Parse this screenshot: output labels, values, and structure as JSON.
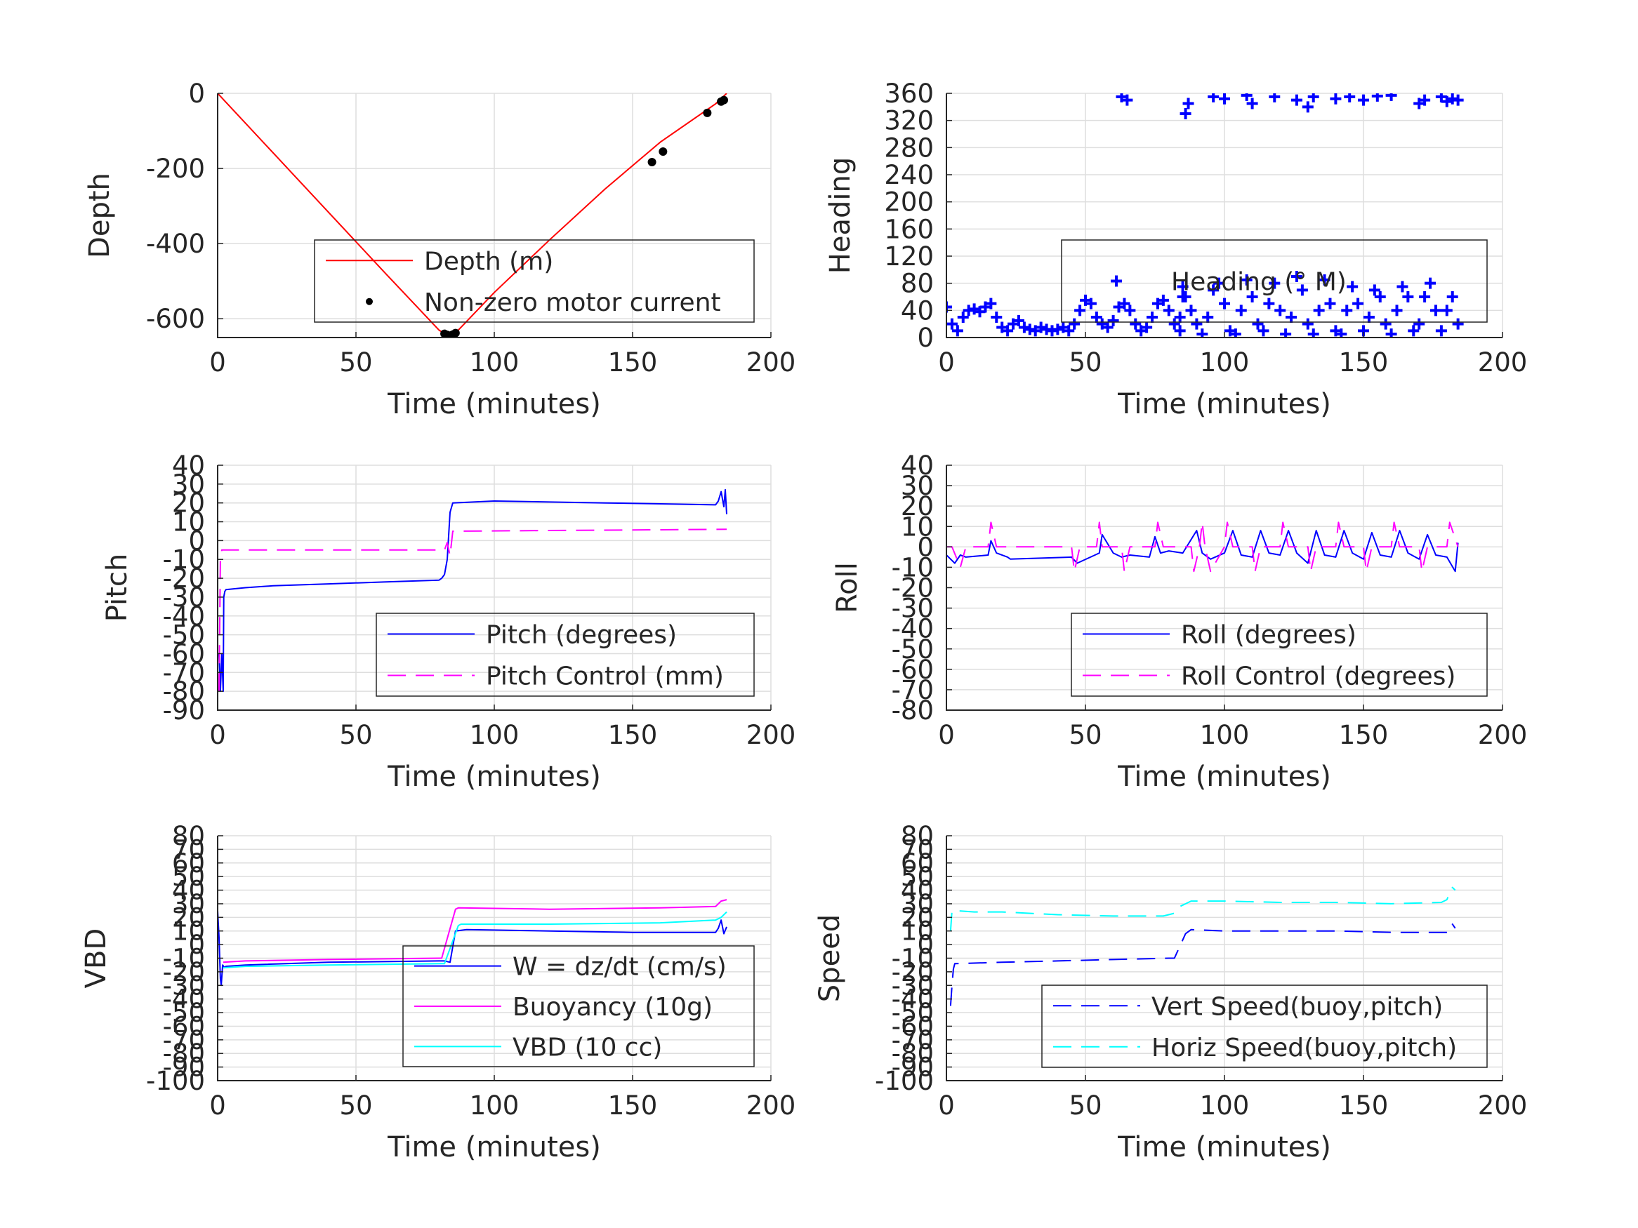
{
  "figure": {
    "background": "#ffffff"
  },
  "chart_data": [
    {
      "id": "depth",
      "type": "line",
      "xlabel": "Time (minutes)",
      "ylabel": "Depth",
      "xlim": [
        0,
        200
      ],
      "ylim": [
        -650,
        0
      ],
      "xticks": [
        "0",
        "50",
        "100",
        "150",
        "200"
      ],
      "yticks": [
        "-600",
        "-400",
        "-200",
        "0"
      ],
      "ytick_values": [
        -600,
        -400,
        -200,
        0
      ],
      "grid": true,
      "legend_position": "lower-right",
      "series": [
        {
          "name": "Depth (m)",
          "style": "line",
          "color": "#ff0000",
          "x": [
            0,
            20,
            40,
            60,
            80,
            83,
            86,
            100,
            120,
            140,
            160,
            180,
            184
          ],
          "y": [
            0,
            -158,
            -316,
            -474,
            -630,
            -645,
            -638,
            -530,
            -390,
            -255,
            -130,
            -28,
            0
          ]
        },
        {
          "name": "Non-zero motor current",
          "style": "dot",
          "color": "#000000",
          "x": [
            82,
            83,
            84,
            85,
            86,
            157,
            161,
            177,
            182,
            183
          ],
          "y": [
            -640,
            -643,
            -645,
            -642,
            -638,
            -183,
            -155,
            -52,
            -22,
            -18
          ]
        }
      ]
    },
    {
      "id": "heading",
      "type": "scatter",
      "xlabel": "Time (minutes)",
      "ylabel": "Heading",
      "xlim": [
        0,
        200
      ],
      "ylim": [
        0,
        360
      ],
      "xticks": [
        "0",
        "50",
        "100",
        "150",
        "200"
      ],
      "yticks": [
        "0",
        "40",
        "80",
        "120",
        "160",
        "200",
        "240",
        "280",
        "320",
        "360"
      ],
      "ytick_values": [
        0,
        40,
        80,
        120,
        160,
        200,
        240,
        280,
        320,
        360
      ],
      "grid": true,
      "legend_position": "center-right",
      "series": [
        {
          "name": "Heading (° M)",
          "style": "plus",
          "color": "#0000ff",
          "x": [
            0,
            2,
            4,
            6,
            8,
            10,
            12,
            14,
            16,
            18,
            20,
            22,
            24,
            26,
            28,
            30,
            32,
            34,
            36,
            38,
            40,
            42,
            44,
            46,
            48,
            50,
            52,
            54,
            56,
            58,
            60,
            62,
            64,
            66,
            68,
            70,
            72,
            74,
            76,
            78,
            80,
            82,
            84,
            84,
            85,
            85,
            86,
            88,
            90,
            92,
            94,
            96,
            98,
            100,
            102,
            104,
            106,
            108,
            110,
            112,
            114,
            116,
            118,
            120,
            122,
            124,
            126,
            128,
            130,
            132,
            134,
            136,
            138,
            140,
            142,
            144,
            146,
            148,
            150,
            152,
            154,
            156,
            158,
            160,
            162,
            164,
            166,
            168,
            170,
            172,
            174,
            176,
            178,
            180,
            182,
            184,
            63,
            65,
            86,
            87,
            96,
            100,
            108,
            110,
            118,
            126,
            130,
            132,
            140,
            145,
            150,
            155,
            160,
            170,
            172,
            178,
            180,
            182,
            184
          ],
          "y": [
            45,
            20,
            10,
            30,
            40,
            42,
            38,
            45,
            50,
            30,
            15,
            10,
            20,
            25,
            15,
            12,
            10,
            15,
            12,
            10,
            12,
            15,
            10,
            20,
            40,
            55,
            50,
            30,
            20,
            15,
            25,
            45,
            50,
            40,
            20,
            10,
            15,
            30,
            50,
            55,
            40,
            20,
            10,
            30,
            60,
            75,
            60,
            40,
            20,
            5,
            30,
            70,
            80,
            50,
            10,
            5,
            40,
            85,
            60,
            20,
            10,
            50,
            80,
            40,
            5,
            30,
            90,
            70,
            20,
            5,
            40,
            85,
            50,
            10,
            5,
            40,
            75,
            50,
            10,
            30,
            70,
            60,
            20,
            5,
            40,
            75,
            60,
            10,
            20,
            60,
            80,
            40,
            10,
            40,
            60,
            20,
            355,
            350,
            330,
            345,
            355,
            352,
            357,
            345,
            355,
            350,
            340,
            355,
            352,
            355,
            350,
            356,
            357,
            345,
            350,
            355,
            348,
            352,
            350
          ]
        }
      ]
    },
    {
      "id": "pitch",
      "type": "line",
      "xlabel": "Time (minutes)",
      "ylabel": "Pitch",
      "xlim": [
        0,
        200
      ],
      "ylim": [
        -90,
        40
      ],
      "xticks": [
        "0",
        "50",
        "100",
        "150",
        "200"
      ],
      "yticks": [
        "-90",
        "-80",
        "-70",
        "-60",
        "-50",
        "-40",
        "-30",
        "-20",
        "-10",
        "0",
        "10",
        "20",
        "30",
        "40"
      ],
      "ytick_values": [
        -90,
        -80,
        -70,
        -60,
        -50,
        -40,
        -30,
        -20,
        -10,
        0,
        10,
        20,
        30,
        40
      ],
      "grid": true,
      "legend_position": "lower-right",
      "series": [
        {
          "name": "Pitch (degrees)",
          "style": "line",
          "color": "#0000ff",
          "x": [
            0.5,
            1,
            1.5,
            2,
            2.2,
            2.6,
            3,
            10,
            20,
            40,
            60,
            80,
            81,
            82,
            83,
            84,
            85,
            100,
            120,
            140,
            160,
            180,
            181,
            182,
            183,
            183.5,
            184
          ],
          "y": [
            -60,
            -80,
            -60,
            -80,
            -30,
            -27,
            -26,
            -25,
            -24,
            -23,
            -22,
            -21,
            -20,
            -18,
            -10,
            15,
            20,
            21,
            20.5,
            20,
            19.5,
            19,
            21,
            26,
            18,
            27,
            14
          ]
        },
        {
          "name": "Pitch Control (mm)",
          "style": "dash",
          "color": "#ff00ff",
          "x": [
            0.5,
            1,
            1.5,
            2,
            80,
            82,
            83,
            84,
            85,
            184
          ],
          "y": [
            -80,
            -10,
            -5,
            -5,
            -5,
            -5,
            -1,
            -8,
            5,
            6
          ]
        }
      ]
    },
    {
      "id": "roll",
      "type": "line",
      "xlabel": "Time (minutes)",
      "ylabel": "Roll",
      "xlim": [
        0,
        200
      ],
      "ylim": [
        -80,
        40
      ],
      "xticks": [
        "0",
        "50",
        "100",
        "150",
        "200"
      ],
      "yticks": [
        "-80",
        "-70",
        "-60",
        "-50",
        "-40",
        "-30",
        "-20",
        "-10",
        "0",
        "10",
        "20",
        "30",
        "40"
      ],
      "ytick_values": [
        -80,
        -70,
        -60,
        -50,
        -40,
        -30,
        -20,
        -10,
        0,
        10,
        20,
        30,
        40
      ],
      "grid": true,
      "legend_position": "lower-right",
      "series": [
        {
          "name": "Roll (degrees)",
          "style": "line",
          "color": "#0000ff",
          "x": [
            0,
            3,
            5,
            7,
            15,
            16,
            18,
            22,
            23,
            45,
            47,
            55,
            56,
            60,
            63,
            66,
            73,
            75,
            77,
            80,
            85,
            90,
            92,
            95,
            100,
            103,
            106,
            110,
            113,
            116,
            120,
            123,
            126,
            130,
            133,
            136,
            140,
            143,
            146,
            150,
            153,
            156,
            160,
            163,
            166,
            170,
            173,
            176,
            180,
            183,
            184
          ],
          "y": [
            -4,
            -8,
            -4,
            -5,
            -4,
            3,
            -3,
            -5,
            -6,
            -5,
            -8,
            -3,
            6,
            -3,
            -5,
            -4,
            -5,
            5,
            -3,
            -2,
            -3,
            8,
            -3,
            -6,
            -3,
            8,
            -4,
            -5,
            8,
            -3,
            -4,
            8,
            -3,
            -8,
            8,
            -4,
            -5,
            8,
            -3,
            -6,
            7,
            -4,
            -5,
            8,
            -3,
            -6,
            6,
            -4,
            -5,
            -12,
            2
          ]
        },
        {
          "name": "Roll Control (degrees)",
          "style": "dash",
          "color": "#ff00ff",
          "x": [
            0,
            2,
            5,
            7,
            15,
            16,
            18,
            22,
            45,
            46,
            48,
            54,
            55,
            56,
            63,
            64,
            66,
            75,
            76,
            78,
            88,
            89,
            91,
            92,
            93,
            95,
            100,
            101,
            103,
            110,
            111,
            113,
            120,
            121,
            123,
            130,
            131,
            133,
            140,
            141,
            143,
            150,
            151,
            153,
            160,
            161,
            163,
            170,
            171,
            173,
            180,
            181,
            184
          ],
          "y": [
            0,
            0,
            -10,
            0,
            0,
            12,
            0,
            0,
            0,
            -12,
            0,
            0,
            12,
            0,
            0,
            -12,
            0,
            0,
            12,
            0,
            0,
            -12,
            0,
            12,
            0,
            -12,
            0,
            12,
            0,
            0,
            -12,
            0,
            0,
            12,
            0,
            0,
            -12,
            0,
            0,
            12,
            0,
            0,
            -12,
            0,
            0,
            12,
            0,
            0,
            -12,
            0,
            0,
            12,
            0
          ]
        }
      ]
    },
    {
      "id": "vbd",
      "type": "line",
      "xlabel": "Time (minutes)",
      "ylabel": "VBD",
      "xlim": [
        0,
        200
      ],
      "ylim": [
        -100,
        80
      ],
      "xticks": [
        "0",
        "50",
        "100",
        "150",
        "200"
      ],
      "yticks": [
        "-100",
        "-90",
        "-80",
        "-70",
        "-60",
        "-50",
        "-40",
        "-30",
        "-20",
        "-10",
        "0",
        "10",
        "20",
        "30",
        "40",
        "50",
        "60",
        "70",
        "80"
      ],
      "ytick_values": [
        -100,
        -90,
        -80,
        -70,
        -60,
        -50,
        -40,
        -30,
        -20,
        -10,
        0,
        10,
        20,
        30,
        40,
        50,
        60,
        70,
        80
      ],
      "grid": true,
      "legend_position": "lower-right",
      "series": [
        {
          "name": "W = dz/dt (cm/s)",
          "style": "line",
          "color": "#0000ff",
          "x": [
            0,
            0.5,
            1,
            1.3,
            1.8,
            2.5,
            3,
            10,
            40,
            80,
            82,
            84,
            86,
            90,
            120,
            150,
            180,
            181,
            182,
            183,
            184
          ],
          "y": [
            25,
            5,
            -25,
            -30,
            -15,
            -17,
            -16,
            -15,
            -13,
            -12,
            -12,
            -13,
            10,
            11,
            10,
            9,
            9,
            12,
            18,
            8,
            13
          ]
        },
        {
          "name": "Buoyancy (10g)",
          "style": "line",
          "color": "#ff00ff",
          "x": [
            2,
            10,
            40,
            80,
            81,
            86,
            87,
            120,
            160,
            180,
            182,
            184
          ],
          "y": [
            -13,
            -12,
            -11,
            -10,
            -10,
            26,
            27,
            26,
            27,
            28,
            32,
            33
          ]
        },
        {
          "name": "VBD (10 cc)",
          "style": "line",
          "color": "#00ffff",
          "x": [
            2,
            10,
            40,
            81,
            82,
            87,
            88,
            120,
            160,
            180,
            182,
            184
          ],
          "y": [
            -17,
            -16,
            -15,
            -14,
            -14,
            14,
            15,
            15,
            16,
            18,
            20,
            24
          ]
        }
      ]
    },
    {
      "id": "speed",
      "type": "line",
      "xlabel": "Time (minutes)",
      "ylabel": "Speed",
      "xlim": [
        0,
        200
      ],
      "ylim": [
        -100,
        80
      ],
      "xticks": [
        "0",
        "50",
        "100",
        "150",
        "200"
      ],
      "yticks": [
        "-100",
        "-90",
        "-80",
        "-70",
        "-60",
        "-50",
        "-40",
        "-30",
        "-20",
        "-10",
        "0",
        "10",
        "20",
        "30",
        "40",
        "50",
        "60",
        "70",
        "80"
      ],
      "ytick_values": [
        -100,
        -90,
        -80,
        -70,
        -60,
        -50,
        -40,
        -30,
        -20,
        -10,
        0,
        10,
        20,
        30,
        40,
        50,
        60,
        70,
        80
      ],
      "grid": true,
      "legend_position": "lower-right",
      "series": [
        {
          "name": "Vert Speed(buoy,pitch)",
          "style": "dash",
          "color": "#0000ff",
          "x": [
            1.5,
            2,
            2.5,
            3,
            20,
            40,
            60,
            80,
            82,
            86,
            88,
            100,
            120,
            140,
            160,
            180,
            181,
            182,
            183
          ],
          "y": [
            -45,
            -30,
            -18,
            -14,
            -13,
            -12,
            -11,
            -10,
            -10,
            8,
            11,
            10,
            10,
            10,
            9,
            9,
            10,
            15,
            12
          ]
        },
        {
          "name": "Horiz Speed(buoy,pitch)",
          "style": "dash",
          "color": "#00ffff",
          "x": [
            1.5,
            2,
            3,
            10,
            20,
            40,
            60,
            78,
            82,
            84,
            88,
            100,
            120,
            140,
            160,
            178,
            180,
            181,
            182,
            183
          ],
          "y": [
            10,
            25,
            25,
            24,
            24,
            22,
            21,
            21,
            23,
            28,
            32,
            32,
            31,
            31,
            30,
            31,
            33,
            38,
            42,
            40
          ]
        }
      ]
    }
  ]
}
